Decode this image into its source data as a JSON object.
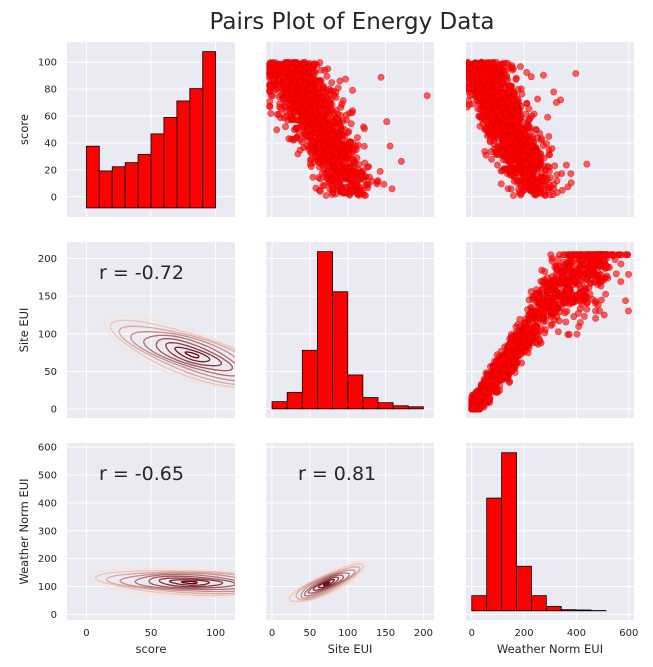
{
  "chart_data": {
    "type": "pairs",
    "title": "Pairs Plot of Energy Data",
    "variables": [
      "score",
      "Site EUI",
      "Weather Norm EUI"
    ],
    "point_color": "#ff0000",
    "bar_color": "#ff0000",
    "kde_colormap": "Reds",
    "panel_background": "#eaeaf2",
    "grid": true,
    "axes": {
      "score": {
        "lim": [
          -15,
          115
        ],
        "ticks": [
          0,
          20,
          40,
          60,
          80,
          100
        ],
        "xticks": [
          0,
          50,
          100
        ]
      },
      "Site EUI": {
        "lim": [
          -12,
          222
        ],
        "ticks": [
          0,
          50,
          100,
          150,
          200
        ],
        "xlim": [
          -8,
          214
        ],
        "xticks": [
          0,
          50,
          100,
          150,
          200
        ]
      },
      "Weather Norm EUI": {
        "lim": [
          -20,
          615
        ],
        "ticks": [
          0,
          100,
          200,
          300,
          400,
          500,
          600
        ],
        "xlim": [
          -22,
          620
        ],
        "xticks": [
          0,
          200,
          400,
          600
        ]
      }
    },
    "histograms": {
      "score": {
        "edges": [
          0,
          10,
          20,
          30,
          40,
          50,
          60,
          70,
          80,
          90,
          100
        ],
        "counts": [
          15,
          9,
          10,
          11,
          13,
          18,
          22,
          26,
          29,
          38
        ]
      },
      "Site EUI": {
        "edges": [
          0,
          20,
          40,
          60,
          80,
          100,
          120,
          140,
          160,
          180,
          200
        ],
        "counts": [
          7,
          16,
          57,
          153,
          114,
          33,
          11,
          6,
          3,
          2
        ]
      },
      "Weather Norm EUI": {
        "edges": [
          0,
          57,
          114,
          171,
          228,
          285,
          342,
          399,
          456,
          513
        ],
        "counts": [
          55,
          410,
          575,
          162,
          55,
          16,
          4,
          3,
          1
        ]
      }
    },
    "correlations": [
      {
        "row": "Site EUI",
        "col": "score",
        "text": "r = -0.72",
        "r": -0.72
      },
      {
        "row": "Weather Norm EUI",
        "col": "score",
        "text": "r = -0.65",
        "r": -0.65
      },
      {
        "row": "Weather Norm EUI",
        "col": "Site EUI",
        "text": "r = 0.81",
        "r": 0.81
      }
    ],
    "kde": [
      {
        "row": "Site EUI",
        "col": "score",
        "center": [
          82,
          72
        ],
        "principal_axes": [
          [
            -0.84,
            0.54
          ],
          [
            0.54,
            0.84
          ]
        ],
        "sigma": [
          34,
          12
        ]
      },
      {
        "row": "Weather Norm EUI",
        "col": "score",
        "center": [
          80,
          115
        ],
        "principal_axes": [
          [
            -0.97,
            0.24
          ],
          [
            0.24,
            0.97
          ]
        ],
        "sigma": [
          34,
          20
        ]
      },
      {
        "row": "Weather Norm EUI",
        "col": "Site EUI",
        "center": [
          72,
          110
        ],
        "principal_axes": [
          [
            0.56,
            0.83
          ],
          [
            -0.83,
            0.56
          ]
        ],
        "sigma": [
          38,
          10
        ]
      }
    ],
    "scatter": [
      {
        "row": "score",
        "col": "Site EUI",
        "trend": [
          [
            20,
            100
          ],
          [
            75,
            40
          ],
          [
            105,
            0
          ]
        ]
      },
      {
        "row": "score",
        "col": "Weather Norm EUI",
        "trend": [
          [
            30,
            100
          ],
          [
            150,
            45
          ],
          [
            250,
            0
          ]
        ]
      },
      {
        "row": "Site EUI",
        "col": "Weather Norm EUI",
        "trend": [
          [
            0,
            0
          ],
          [
            150,
            70
          ],
          [
            300,
            150
          ],
          [
            520,
            205
          ]
        ]
      }
    ]
  }
}
